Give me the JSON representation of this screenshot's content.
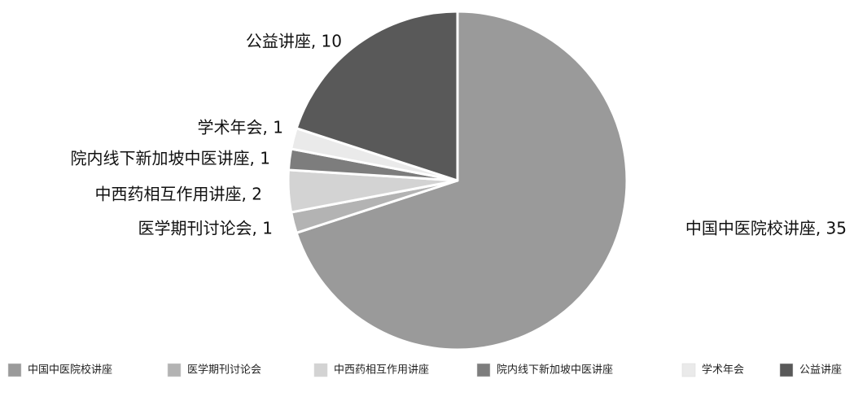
{
  "chart_data": {
    "type": "pie",
    "title": "",
    "start_angle_deg": 0,
    "direction": "clockwise",
    "slice_border_color": "#ffffff",
    "label_format": "{category}, {value}",
    "legend_position": "bottom",
    "slices": [
      {
        "category": "中国中医院校讲座",
        "value": 35,
        "color": "#9a9a9a"
      },
      {
        "category": "医学期刊讨论会",
        "value": 1,
        "color": "#b3b3b3"
      },
      {
        "category": "中西药相互作用讲座",
        "value": 2,
        "color": "#d3d3d3"
      },
      {
        "category": "院内线下新加坡中医讲座",
        "value": 1,
        "color": "#7d7d7d"
      },
      {
        "category": "学术年会",
        "value": 1,
        "color": "#eaeaea"
      },
      {
        "category": "公益讲座",
        "value": 10,
        "color": "#595959"
      }
    ]
  }
}
